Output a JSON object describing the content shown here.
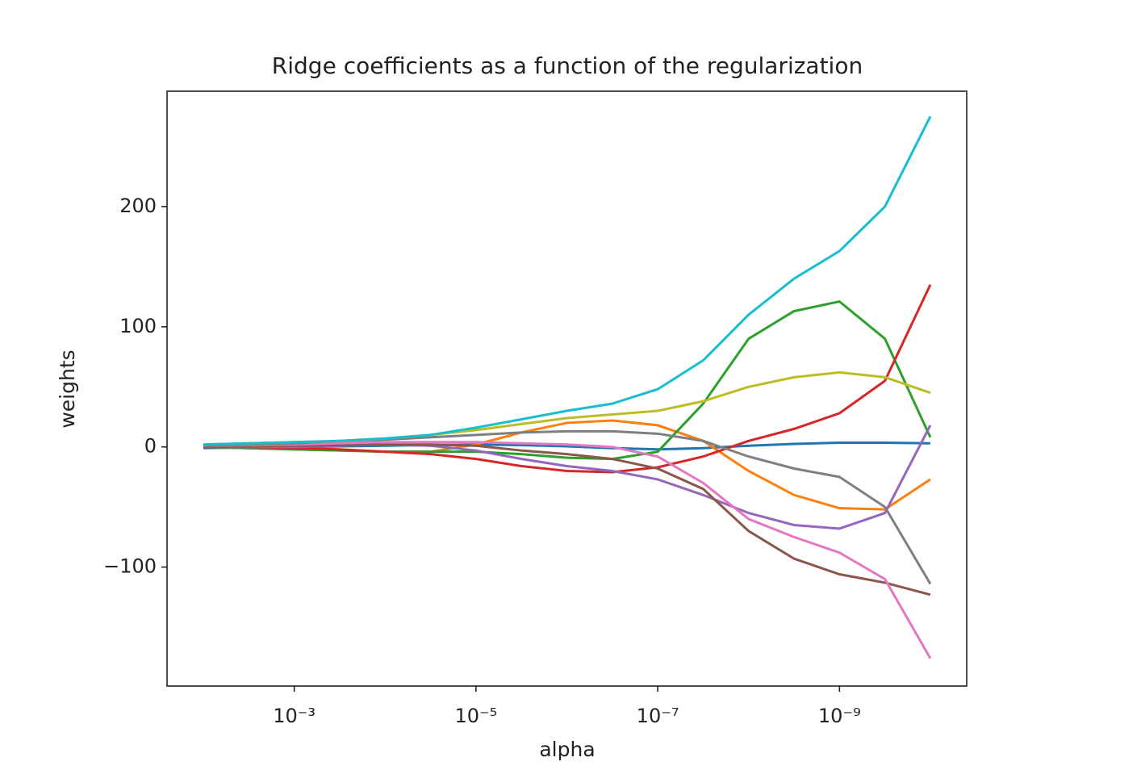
{
  "chart_data": {
    "type": "line",
    "title": "Ridge coefficients as a function of the regularization",
    "x_label": "alpha",
    "y_label": "weights",
    "xscale": "log",
    "xlim": [
      0.0251,
      3.98e-11
    ],
    "ylim": [
      -199,
      296
    ],
    "xticks": [
      {
        "value": 0.001,
        "label": "10⁻³"
      },
      {
        "value": 1e-05,
        "label": "10⁻⁵"
      },
      {
        "value": 1e-07,
        "label": "10⁻⁷"
      },
      {
        "value": 1e-09,
        "label": "10⁻⁹"
      }
    ],
    "yticks": [
      {
        "value": -100,
        "label": "−100"
      },
      0,
      100,
      200
    ],
    "x": [
      0.01,
      0.00316,
      0.001,
      0.000316,
      0.0001,
      3.16e-05,
      1e-05,
      3.16e-06,
      1e-06,
      3.16e-07,
      1e-07,
      3.16e-08,
      1e-08,
      3.16e-09,
      1e-09,
      3.16e-10,
      1e-10
    ],
    "series": [
      {
        "color": "#1f77b4",
        "values": [
          -1,
          -0.5,
          0,
          0.5,
          1,
          1.5,
          2,
          1.5,
          0.5,
          -1,
          -2,
          -1,
          1,
          2.5,
          3.5,
          3.5,
          3
        ]
      },
      {
        "color": "#ff7f0e",
        "values": [
          0,
          -1,
          -2,
          -3,
          -4,
          -4,
          2,
          12,
          20,
          22,
          18,
          5,
          -20,
          -40,
          -51,
          -52,
          -27
        ]
      },
      {
        "color": "#2ca02c",
        "values": [
          0,
          -1,
          -2,
          -3,
          -4,
          -4,
          -4,
          -6,
          -9,
          -10,
          -4,
          36,
          90,
          113,
          121,
          90,
          8
        ]
      },
      {
        "color": "#d62728",
        "values": [
          0,
          0,
          -1,
          -2,
          -4,
          -6,
          -10,
          -16,
          -20,
          -21,
          -17,
          -8,
          5,
          15,
          28,
          55,
          135
        ]
      },
      {
        "color": "#9467bd",
        "values": [
          0,
          0,
          0,
          1,
          2,
          1,
          -3,
          -10,
          -16,
          -20,
          -27,
          -40,
          -55,
          -65,
          -68,
          -55,
          18
        ]
      },
      {
        "color": "#8c564b",
        "values": [
          0,
          0.5,
          1,
          1.5,
          2,
          2,
          1,
          -3,
          -6,
          -10,
          -18,
          -35,
          -70,
          -93,
          -106,
          -113,
          -123
        ]
      },
      {
        "color": "#e377c2",
        "values": [
          1,
          1.5,
          2,
          3,
          4,
          4,
          4,
          3,
          2,
          0,
          -8,
          -30,
          -60,
          -75,
          -88,
          -110,
          -176
        ]
      },
      {
        "color": "#7f7f7f",
        "values": [
          1,
          2,
          3,
          5,
          6,
          8,
          10,
          12,
          13,
          13,
          11,
          5,
          -8,
          -18,
          -25,
          -50,
          -114
        ]
      },
      {
        "color": "#bcbd22",
        "values": [
          2,
          3,
          4,
          5,
          7,
          10,
          14,
          19,
          24,
          27,
          30,
          38,
          50,
          58,
          62,
          58,
          45
        ]
      },
      {
        "color": "#17becf",
        "values": [
          2,
          3,
          4,
          5,
          7,
          10,
          16,
          23,
          30,
          36,
          48,
          72,
          110,
          140,
          163,
          200,
          275
        ]
      }
    ]
  }
}
